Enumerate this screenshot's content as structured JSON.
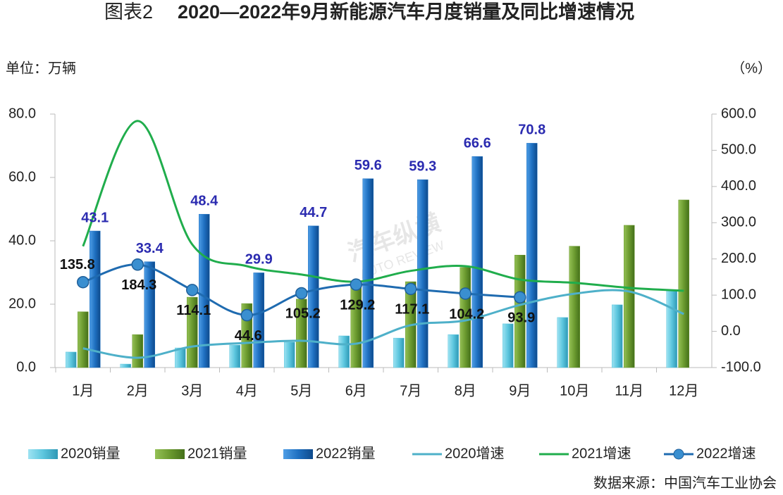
{
  "chart_data": {
    "type": "bar",
    "title_prefix": "图表2",
    "title": "2020—2022年9月新能源汽车月度销量及同比增速情况",
    "y_label": "单位：万辆",
    "y2_label": "（%）",
    "source": "数据来源：中国汽车工业协会",
    "watermark": "汽车纵横",
    "watermark_sub": "AUTO REVIEW",
    "categories": [
      "1月",
      "2月",
      "3月",
      "4月",
      "5月",
      "6月",
      "7月",
      "8月",
      "9月",
      "10月",
      "11月",
      "12月"
    ],
    "ylim": [
      0,
      80
    ],
    "yticks": [
      {
        "value": 0,
        "label": "0.0"
      },
      {
        "value": 20,
        "label": "20.0"
      },
      {
        "value": 40,
        "label": "40.0"
      },
      {
        "value": 60,
        "label": "60.0"
      },
      {
        "value": 80,
        "label": "80.0"
      }
    ],
    "y2lim": [
      -100,
      600
    ],
    "y2ticks": [
      {
        "value": -100,
        "label": "-100.0"
      },
      {
        "value": 0,
        "label": "0.0"
      },
      {
        "value": 100,
        "label": "100.0"
      },
      {
        "value": 200,
        "label": "200.0"
      },
      {
        "value": 300,
        "label": "300.0"
      },
      {
        "value": 400,
        "label": "400.0"
      },
      {
        "value": 500,
        "label": "500.0"
      },
      {
        "value": 600,
        "label": "600.0"
      }
    ],
    "legend": "bottom",
    "series": [
      {
        "name": "2020销量",
        "type": "bar",
        "color": "#5cc6de",
        "values": [
          4.9,
          1.1,
          6.2,
          7.1,
          8.0,
          10.0,
          9.3,
          10.4,
          13.8,
          15.8,
          19.8,
          24.4
        ]
      },
      {
        "name": "2021销量",
        "type": "bar",
        "color": "#6b9a2f",
        "values": [
          17.6,
          10.4,
          22.2,
          20.2,
          21.6,
          25.3,
          27.1,
          31.6,
          35.5,
          38.3,
          44.9,
          52.9
        ]
      },
      {
        "name": "2022销量",
        "type": "bar",
        "color": "#1f70c1",
        "show_labels": true,
        "label_color": "#2b2bb0",
        "values": [
          43.1,
          33.4,
          48.4,
          29.9,
          44.7,
          59.6,
          59.3,
          66.6,
          70.8,
          null,
          null,
          null
        ]
      },
      {
        "name": "2020增速",
        "type": "line",
        "axis": "y2",
        "color": "#4eb0c9",
        "values": [
          -47,
          -73,
          -42,
          -32,
          -26,
          -34,
          17,
          30,
          73,
          104,
          110,
          48
        ]
      },
      {
        "name": "2021增速",
        "type": "line",
        "axis": "y2",
        "color": "#20ad4c",
        "values": [
          235,
          581,
          240,
          180,
          157,
          137,
          167,
          180,
          143,
          134,
          120,
          112
        ]
      },
      {
        "name": "2022增速",
        "type": "line",
        "axis": "y2",
        "color": "#1f6bb0",
        "markers": true,
        "show_labels": true,
        "label_color": "#111",
        "values": [
          135.8,
          184.3,
          114.1,
          44.6,
          105.2,
          129.2,
          117.1,
          104.2,
          93.9,
          null,
          null,
          null
        ]
      }
    ]
  }
}
